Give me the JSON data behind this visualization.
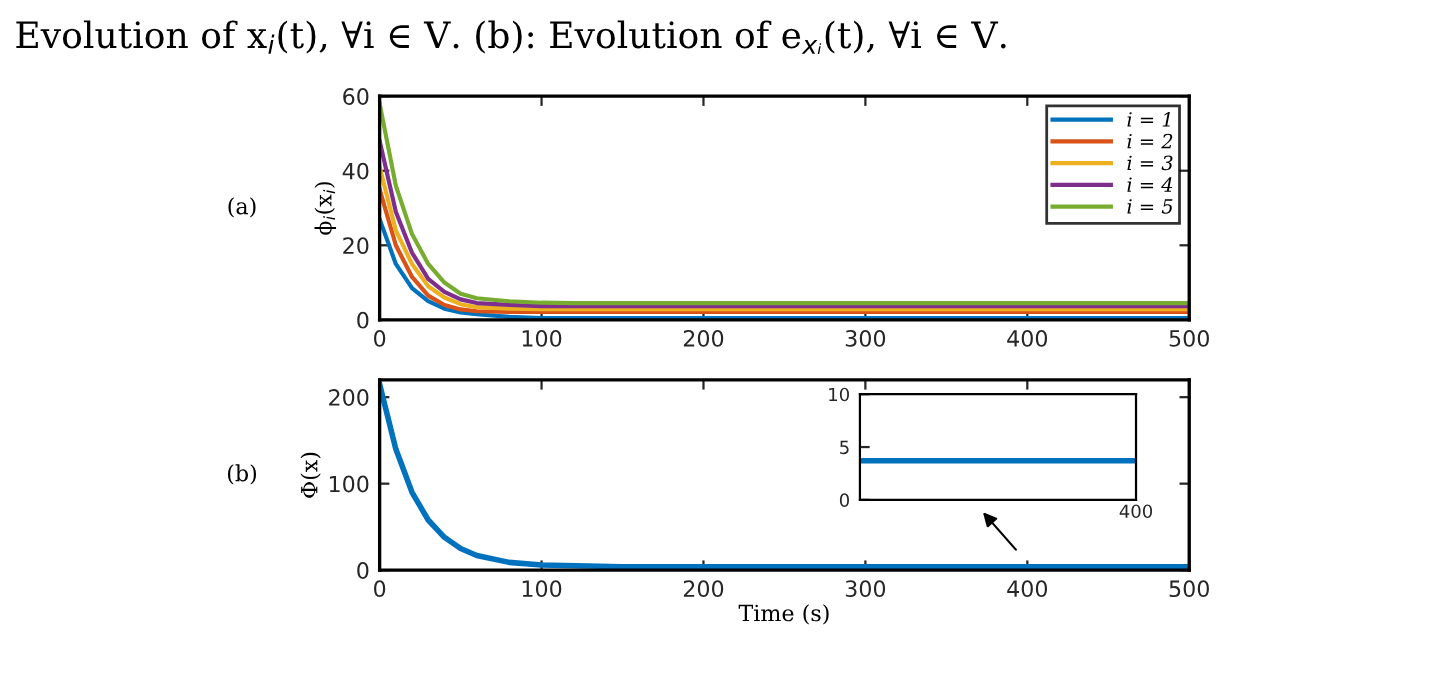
{
  "chart_data": [
    {
      "type": "line",
      "title": "Evolution of x$_{i}$(t), ∀i ∈ V. (b): Evolution of e$_{xᵢ}$(t), ∀i ∈ V.",
      "ylabel": "ϕ$_{i}$(x$_{i}$)",
      "annotations": [
        "(a)"
      ],
      "x": [
        0,
        10,
        20,
        30,
        40,
        50,
        60,
        80,
        100,
        120,
        150,
        200,
        300,
        400,
        500
      ],
      "series": [
        {
          "name": "i = 1",
          "color": "#0072bd",
          "values": [
            27,
            15,
            8.5,
            5,
            3,
            2,
            1.5,
            0.8,
            0.5,
            0.5,
            0.5,
            0.5,
            0.5,
            0.5,
            0.5
          ]
        },
        {
          "name": "i = 2",
          "color": "#d95319",
          "values": [
            35,
            20,
            11.5,
            6.5,
            4,
            2.8,
            2.3,
            2.1,
            2.1,
            2.1,
            2.1,
            2.1,
            2.1,
            2.1,
            2.1
          ]
        },
        {
          "name": "i = 3",
          "color": "#edb120",
          "values": [
            41,
            24,
            15,
            9,
            6,
            4.2,
            3.4,
            3,
            2.9,
            2.9,
            2.9,
            2.9,
            2.9,
            2.9,
            2.9
          ]
        },
        {
          "name": "i = 4",
          "color": "#7e2f8e",
          "values": [
            48,
            29,
            18,
            11,
            7.5,
            5.5,
            4.5,
            4,
            3.7,
            3.7,
            3.7,
            3.7,
            3.7,
            3.7,
            3.7
          ]
        },
        {
          "name": "i = 5",
          "color": "#77ac30",
          "values": [
            58,
            36,
            23,
            15,
            10,
            7,
            5.8,
            5,
            4.6,
            4.5,
            4.5,
            4.5,
            4.5,
            4.5,
            4.5
          ]
        }
      ],
      "xlim": [
        0,
        500
      ],
      "xticks": [
        0,
        100,
        200,
        300,
        400,
        500
      ],
      "ylim": [
        0,
        60
      ],
      "yticks": [
        0,
        20,
        40,
        60
      ],
      "legend": "top right",
      "grid": false
    },
    {
      "type": "line",
      "ylabel": "Φ(x)",
      "xlabel": "Time (s)",
      "annotations": [
        "(b)"
      ],
      "x": [
        0,
        10,
        20,
        30,
        40,
        50,
        60,
        80,
        100,
        150,
        200,
        300,
        400,
        500
      ],
      "series": [
        {
          "color": "#0072bd",
          "values": [
            215,
            140,
            90,
            58,
            38,
            25,
            17,
            9,
            6,
            4,
            4,
            4,
            4,
            4
          ]
        }
      ],
      "xlim": [
        0,
        500
      ],
      "xticks": [
        0,
        100,
        200,
        300,
        400,
        500
      ],
      "ylim": [
        0,
        220
      ],
      "yticks": [
        0,
        100,
        200
      ],
      "grid": false
    },
    {
      "type": "line",
      "categories": [
        null,
        null,
        null,
        null,
        null
      ],
      "annotations": [
        "400"
      ],
      "series": [
        {
          "color": "#0072bd",
          "values": [
            3.7,
            3.7,
            3.7,
            3.7,
            3.7
          ]
        }
      ],
      "ylim": [
        0,
        10
      ],
      "yticks": [
        0,
        5,
        10
      ],
      "grid": false
    }
  ]
}
